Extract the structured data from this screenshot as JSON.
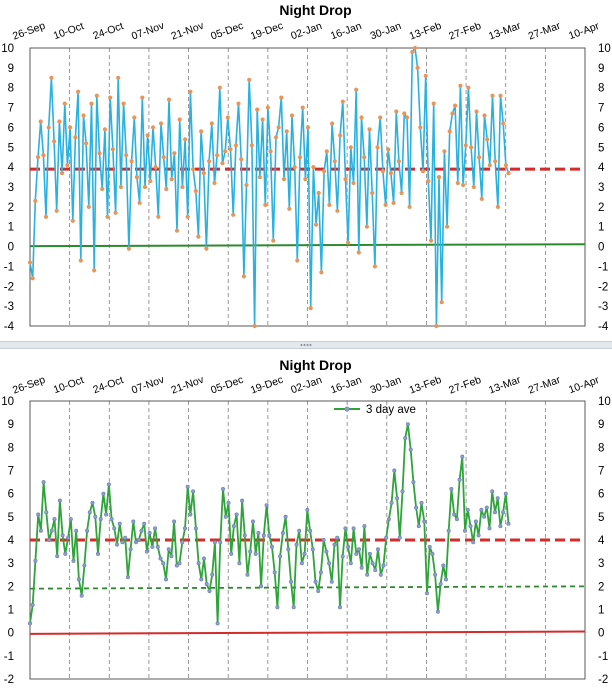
{
  "chart_data": [
    {
      "type": "line",
      "title": "Night Drop",
      "x_tick_labels": [
        "26-Sep",
        "10-Oct",
        "24-Oct",
        "07-Nov",
        "21-Nov",
        "05-Dec",
        "19-Dec",
        "02-Jan",
        "16-Jan",
        "30-Jan",
        "13-Feb",
        "27-Feb",
        "13-Mar",
        "27-Mar",
        "10-Apr"
      ],
      "y_tick_labels": [
        "-4",
        "-3",
        "-2",
        "-1",
        "0",
        "1",
        "2",
        "3",
        "4",
        "5",
        "6",
        "7",
        "8",
        "9",
        "10"
      ],
      "ylim": [
        -4,
        10
      ],
      "grid": "vertical dashed at each date tick",
      "series": [
        {
          "color": "#29b1e0",
          "marker_color": "#e8955a",
          "x_start": "26-Sep",
          "x_end": "14-Mar",
          "values": [
            -0.8,
            -1.6,
            2.3,
            4.5,
            6.3,
            4.6,
            1.5,
            6.0,
            8.5,
            5.3,
            1.8,
            6.3,
            3.7,
            7.2,
            4.1,
            6.0,
            1.3,
            5.5,
            7.8,
            -0.7,
            6.6,
            5.2,
            2.0,
            7.2,
            -1.2,
            7.6,
            4.7,
            2.9,
            5.9,
            1.5,
            7.5,
            4.9,
            1.7,
            8.5,
            3.0,
            7.2,
            4.6,
            -0.1,
            4.3,
            6.5,
            3.5,
            2.2,
            7.5,
            3.0,
            5.6,
            3.3,
            6.0,
            4.0,
            1.5,
            6.2,
            4.5,
            2.9,
            7.4,
            3.4,
            4.7,
            0.8,
            6.4,
            3.0,
            5.4,
            1.5,
            7.8,
            3.9,
            2.8,
            0.5,
            5.8,
            3.7,
            -0.1,
            4.3,
            6.2,
            3.2,
            4.6,
            8.0,
            4.2,
            4.8,
            6.5,
            4.9,
            1.6,
            5.1,
            7.2,
            4.4,
            -1.5,
            3.1,
            8.4,
            5.1,
            -4.0,
            6.9,
            3.5,
            6.4,
            2.1,
            7.0,
            4.8,
            0.3,
            5.5,
            6.0,
            7.5,
            3.4,
            5.8,
            1.9,
            6.6,
            4.0,
            -0.7,
            4.5,
            7.0,
            3.4,
            6.0,
            -3.1,
            4.0,
            1.1,
            2.7,
            -1.3,
            3.8,
            4.8,
            2.1,
            6.2,
            4.3,
            1.8,
            5.6,
            7.3,
            3.4,
            0.2,
            5.0,
            3.2,
            7.9,
            -0.3,
            6.5,
            4.5,
            1.0,
            5.9,
            2.7,
            -1.0,
            5.0,
            6.5,
            3.8,
            2.1,
            4.9,
            3.7,
            2.2,
            6.8,
            4.3,
            2.7,
            6.7,
            6.5,
            2.0,
            9.8,
            10.0,
            9.0,
            6.0,
            3.8,
            8.6,
            3.3,
            0.3,
            7.2,
            -4.0,
            3.5,
            -2.8,
            4.8,
            1.0,
            5.8,
            6.7,
            7.1,
            3.2,
            8.1,
            3.1,
            5.1,
            8.0,
            5.0,
            3.0,
            6.8,
            4.5,
            2.4,
            6.6,
            5.4,
            4.1,
            7.6,
            4.3,
            2.0,
            7.6,
            6.2,
            4.1,
            3.7
          ]
        },
        {
          "color": "#d42b2b",
          "style": "dashed",
          "x_start": "26-Sep",
          "x_end": "10-Apr",
          "values": [
            3.9,
            3.9
          ]
        },
        {
          "color": "#2e8a2e",
          "x_start": "26-Sep",
          "x_end": "10-Apr",
          "values": [
            0.02,
            0.12
          ]
        }
      ]
    },
    {
      "type": "line",
      "title": "Night Drop",
      "x_tick_labels": [
        "26-Sep",
        "10-Oct",
        "24-Oct",
        "07-Nov",
        "21-Nov",
        "05-Dec",
        "19-Dec",
        "02-Jan",
        "16-Jan",
        "30-Jan",
        "13-Feb",
        "27-Feb",
        "13-Mar",
        "27-Mar",
        "10-Apr"
      ],
      "y_tick_labels": [
        "-2",
        "-1",
        "0",
        "1",
        "2",
        "3",
        "4",
        "5",
        "6",
        "7",
        "8",
        "9",
        "10"
      ],
      "ylim": [
        -2,
        10
      ],
      "legend_position": "top-center",
      "grid": "vertical dashed at each date tick",
      "series": [
        {
          "name": "3 day ave",
          "color": "#2ea43a",
          "marker_color": "#8c9ec9",
          "x_start": "26-Sep",
          "x_end": "14-Mar",
          "values": [
            0.4,
            1.2,
            3.1,
            5.1,
            4.4,
            6.5,
            5.2,
            4.0,
            4.4,
            4.9,
            3.3,
            5.7,
            4.2,
            3.4,
            4.1,
            4.9,
            3.1,
            4.4,
            2.3,
            1.6,
            2.9,
            4.4,
            5.2,
            5.6,
            5.0,
            3.4,
            4.9,
            6.0,
            5.1,
            6.4,
            4.9,
            4.5,
            3.8,
            4.7,
            3.9,
            4.1,
            2.4,
            3.6,
            4.8,
            3.9,
            4.0,
            4.4,
            4.7,
            3.5,
            4.3,
            3.7,
            4.5,
            3.7,
            3.2,
            3.0,
            2.3,
            3.6,
            3.3,
            4.8,
            2.9,
            3.0,
            3.9,
            4.5,
            6.3,
            5.1,
            6.1,
            4.5,
            3.0,
            2.3,
            3.2,
            2.1,
            1.8,
            2.5,
            3.9,
            0.4,
            3.9,
            6.2,
            5.0,
            5.6,
            3.4,
            4.6,
            5.1,
            3.0,
            5.7,
            4.2,
            2.5,
            3.5,
            4.8,
            3.4,
            4.3,
            2.0,
            4.2,
            5.5,
            4.2,
            3.7,
            2.6,
            1.1,
            3.3,
            4.3,
            5.0,
            3.6,
            2.2,
            1.1,
            3.8,
            4.4,
            3.0,
            3.4,
            5.3,
            4.4,
            3.6,
            2.2,
            1.8,
            2.6,
            4.0,
            3.5,
            3.0,
            2.2,
            3.8,
            4.1,
            1.1,
            3.3,
            4.5,
            3.7,
            3.0,
            4.5,
            3.4,
            3.6,
            2.8,
            4.6,
            2.5,
            3.4,
            3.0,
            2.7,
            3.6,
            2.5,
            2.9,
            4.1,
            4.9,
            5.6,
            7.0,
            5.8,
            4.1,
            6.1,
            8.4,
            9.0,
            7.9,
            6.5,
            5.4,
            4.6,
            5.6,
            4.8,
            1.7,
            3.7,
            3.4,
            2.5,
            0.9,
            2.1,
            2.9,
            2.3,
            4.4,
            6.2,
            5.1,
            4.9,
            6.6,
            7.6,
            4.4,
            5.3,
            4.6,
            3.9,
            4.8,
            4.2,
            5.3,
            5.0,
            5.4,
            4.5,
            6.1,
            5.2,
            5.8,
            4.6,
            5.2,
            6.0,
            4.7
          ]
        },
        {
          "color": "#d42b2b",
          "style": "dashed",
          "x_start": "26-Sep",
          "x_end": "10-Apr",
          "values": [
            4.0,
            4.0
          ]
        },
        {
          "color": "#2e8a2e",
          "style": "dashed",
          "x_start": "26-Sep",
          "x_end": "10-Apr",
          "values": [
            1.9,
            2.0
          ]
        },
        {
          "color": "#d42b2b",
          "x_start": "26-Sep",
          "x_end": "10-Apr",
          "values": [
            -0.05,
            0.05
          ]
        }
      ]
    }
  ]
}
